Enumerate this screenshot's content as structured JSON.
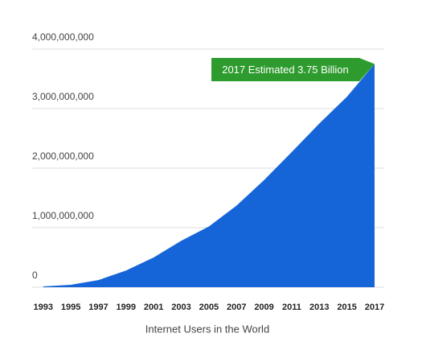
{
  "chart_data": {
    "type": "area",
    "caption": "Internet Users in the World",
    "annotation": "2017 Estimated 3.75 Billion",
    "x": [
      1993,
      1995,
      1997,
      1999,
      2001,
      2003,
      2005,
      2007,
      2009,
      2011,
      2013,
      2015,
      2017
    ],
    "values": [
      14000000,
      40000000,
      120000000,
      280000000,
      500000000,
      780000000,
      1020000000,
      1370000000,
      1800000000,
      2270000000,
      2750000000,
      3200000000,
      3750000000
    ],
    "color": "#1565d8",
    "annotation_color": "#2e9b2e",
    "xlim": [
      1992.2,
      2017.7
    ],
    "xticks": [
      1993,
      1995,
      1997,
      1999,
      2001,
      2003,
      2005,
      2007,
      2009,
      2011,
      2013,
      2015,
      2017
    ],
    "ylim": [
      0,
      4000000000
    ],
    "yticks": [
      0,
      {
        "value": 1000000000,
        "label": "1,000,000,000"
      },
      {
        "value": 2000000000,
        "label": "2,000,000,000"
      },
      {
        "value": 3000000000,
        "label": "3,000,000,000"
      },
      {
        "value": 4000000000,
        "label": "4,000,000,000"
      }
    ],
    "grid": true
  }
}
